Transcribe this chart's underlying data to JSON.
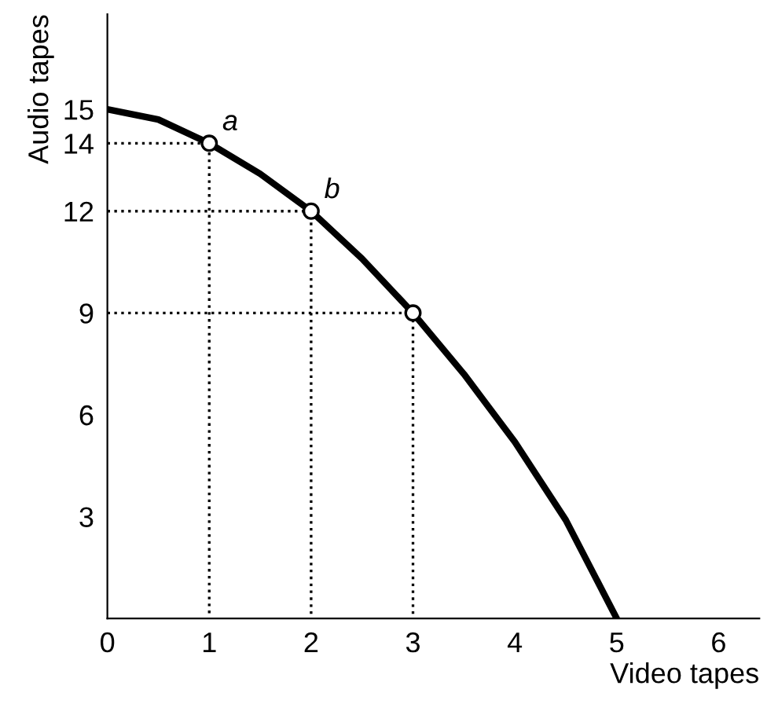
{
  "chart_data": {
    "type": "line",
    "xlabel": "Video tapes",
    "ylabel": "Audio tapes",
    "xlim": [
      0,
      6.4
    ],
    "ylim": [
      0,
      17.8
    ],
    "xticks": [
      0,
      1,
      2,
      3,
      4,
      5,
      6
    ],
    "yticks": [
      3,
      6,
      9,
      12,
      14,
      15
    ],
    "grid": false,
    "legend": false,
    "series": [
      {
        "color": "#000000",
        "line_style": "solid",
        "marker": "none",
        "x": [
          0,
          0.5,
          1,
          1.5,
          2,
          2.5,
          3,
          3.5,
          4,
          4.5,
          5
        ],
        "values": [
          15,
          14.7,
          14,
          13.1,
          12,
          10.6,
          9,
          7.2,
          5.2,
          2.9,
          0
        ]
      },
      {
        "color": "#000000",
        "line_style": "dotted",
        "marker": "none",
        "x": [
          0,
          1,
          1
        ],
        "values": [
          14,
          14,
          0
        ]
      },
      {
        "color": "#000000",
        "line_style": "dotted",
        "marker": "none",
        "x": [
          0,
          2,
          2
        ],
        "values": [
          12,
          12,
          0
        ]
      },
      {
        "color": "#000000",
        "line_style": "dotted",
        "marker": "none",
        "x": [
          0,
          3,
          3
        ],
        "values": [
          9,
          9,
          0
        ]
      },
      {
        "type": "scatter",
        "color": "#000000",
        "marker": "circle",
        "x": [
          1,
          2,
          3
        ],
        "values": [
          14,
          12,
          9
        ]
      }
    ],
    "annotations": [
      {
        "text": "a",
        "x": 1,
        "y": 14
      },
      {
        "text": "b",
        "x": 2,
        "y": 12
      }
    ]
  }
}
